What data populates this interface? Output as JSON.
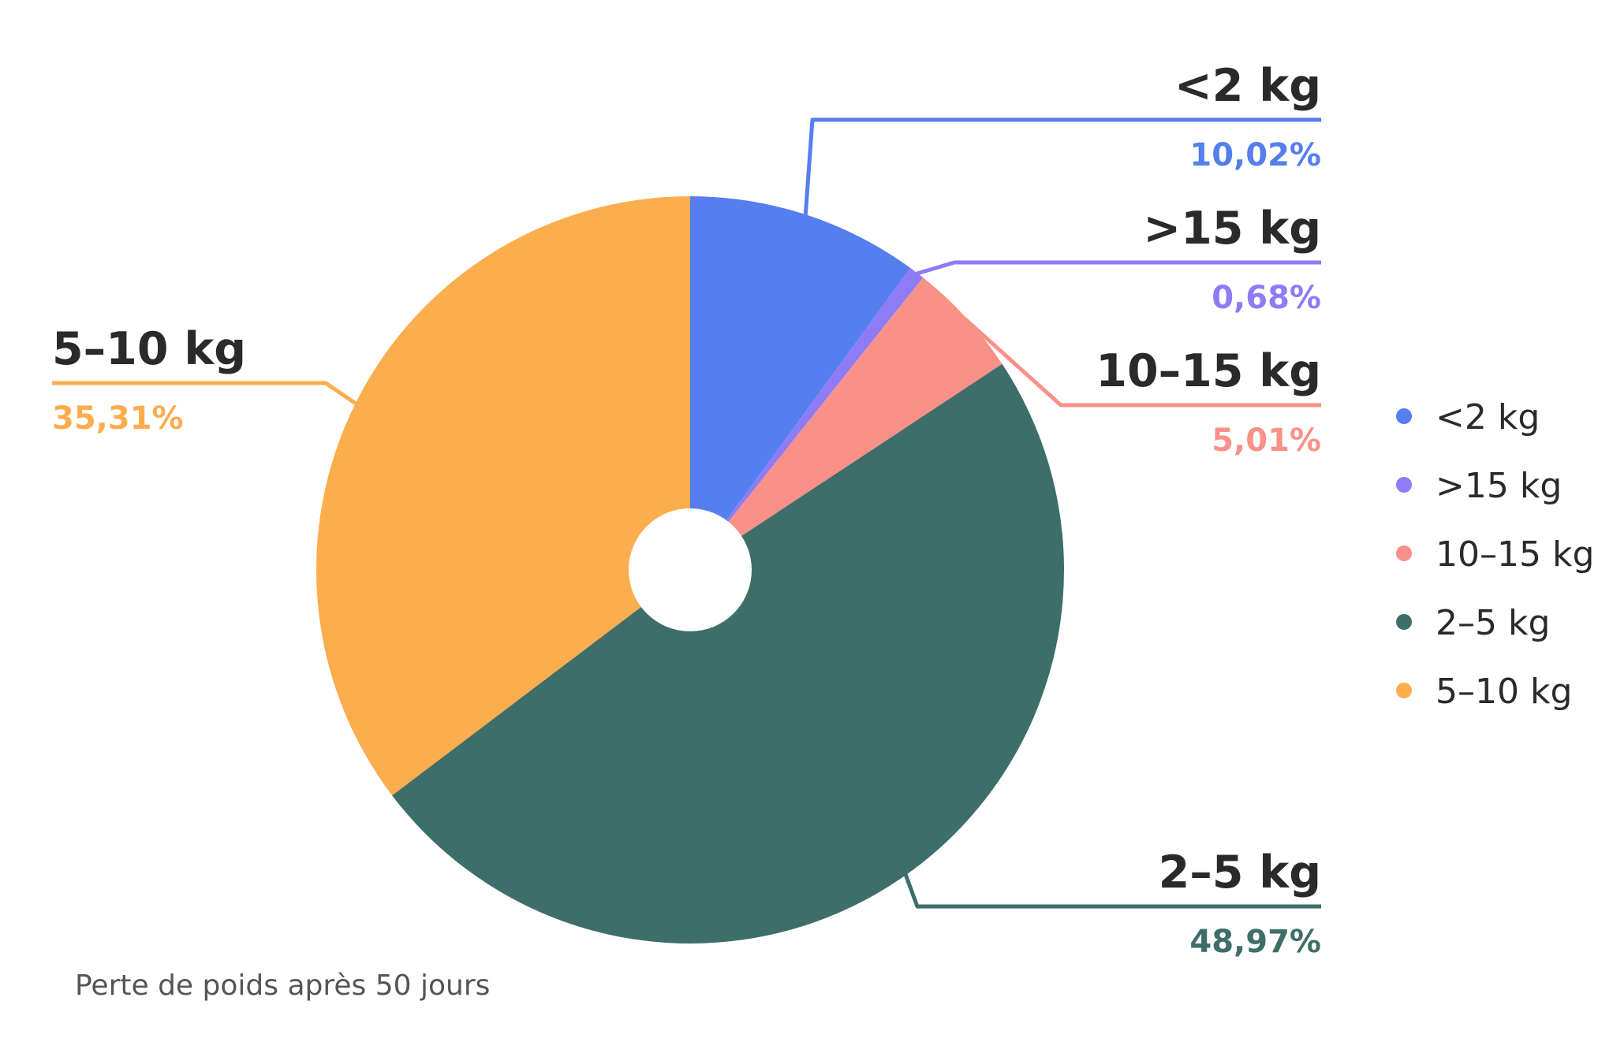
{
  "chart_data": {
    "type": "pie",
    "title": "",
    "caption": "Perte de poids après 50 jours",
    "start": "top-clockwise",
    "inner_hole": true,
    "legend_position": "right",
    "slices": [
      {
        "name": "<2 kg",
        "value": 10.02,
        "label": "10,02%",
        "color": "#557EEE"
      },
      {
        "name": ">15 kg",
        "value": 0.68,
        "label": "0,68%",
        "color": "#8E7CF7"
      },
      {
        "name": "10–15 kg",
        "value": 5.01,
        "label": "5,01%",
        "color": "#FA9189"
      },
      {
        "name": "2–5 kg",
        "value": 48.97,
        "label": "48,97%",
        "color": "#3D6E69"
      },
      {
        "name": "5–10 kg",
        "value": 35.31,
        "label": "35,31%",
        "color": "#FCAD4E"
      }
    ],
    "legend": [
      "<2 kg",
      ">15 kg",
      "10–15 kg",
      "2–5 kg",
      "5–10 kg"
    ]
  }
}
